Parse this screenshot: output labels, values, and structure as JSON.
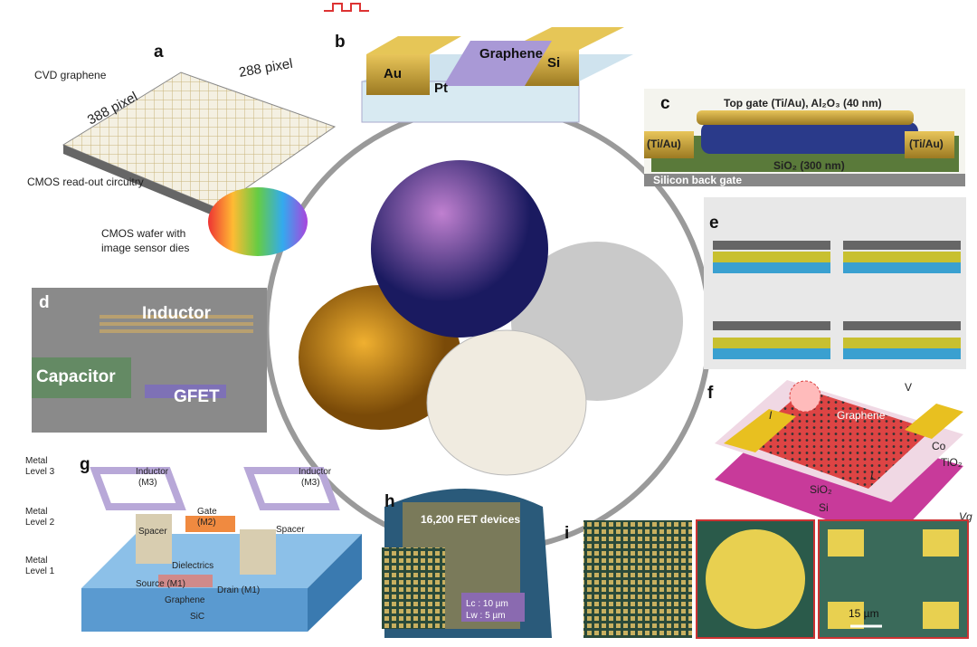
{
  "panels": {
    "a": {
      "label": "a",
      "graphene": "CVD graphene",
      "width": "288 pixel",
      "height": "388 pixel",
      "readout": "CMOS read-out circuitry",
      "wafer": [
        "CMOS wafer with",
        "image sensor dies"
      ]
    },
    "b": {
      "label": "b",
      "layers": [
        "Au",
        "Pt",
        "Graphene",
        "Si"
      ]
    },
    "c": {
      "label": "c",
      "top_gate": "Top gate (Ti/Au), Al₂O₃ (40 nm)",
      "left_contact": "(Ti/Au)",
      "right_contact": "(Ti/Au)",
      "oxide": "SiO₂ (300 nm)",
      "back_gate": "Silicon back gate"
    },
    "d": {
      "label": "d",
      "inductor": "Inductor",
      "capacitor": "Capacitor",
      "gfet": "GFET"
    },
    "e": {
      "label": "e"
    },
    "f": {
      "label": "f",
      "current": "I",
      "voltage": "V",
      "graphene": "Graphene",
      "cobalt": "Co",
      "tunnel": "TiO₂",
      "length": "L",
      "oxide": "SiO₂",
      "substrate": "Si",
      "gate": "Vg"
    },
    "g": {
      "label": "g",
      "metal3": [
        "Metal",
        "Level 3"
      ],
      "metal2": [
        "Metal",
        "Level 2"
      ],
      "metal1": [
        "Metal",
        "Level 1"
      ],
      "inductor_left": [
        "Inductor",
        "(M3)"
      ],
      "inductor_right": [
        "Inductor",
        "(M3)"
      ],
      "gate": [
        "Gate",
        "(M2)"
      ],
      "spacer_left": "Spacer",
      "spacer_right": "Spacer",
      "dielectrics": "Dielectrics",
      "source": "Source (M1)",
      "drain": "Drain (M1)",
      "graphene": "Graphene",
      "substrate": "SiC"
    },
    "h": {
      "label": "h",
      "devices": "16,200 FET devices",
      "lc": "Lc : 10 µm",
      "lw": "Lw : 5 µm"
    },
    "i": {
      "label": "i",
      "scale": "15 µm"
    }
  }
}
